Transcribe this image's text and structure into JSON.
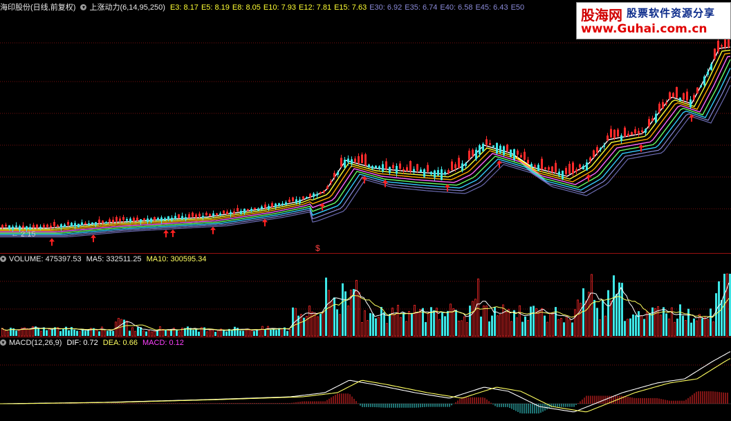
{
  "colors": {
    "background": "#000000",
    "grid_line": "#7a1010",
    "up_candle": "#ff2a2a",
    "down_candle": "#3ee6e6",
    "ma_bands": [
      "#ffffff",
      "#ffff33",
      "#ffaa00",
      "#ff66ff",
      "#66ff66",
      "#33ccff",
      "#8a8ad8",
      "#6a6ab0"
    ],
    "buy_arrow": "#ff2020",
    "dif_line": "#ffffff",
    "dea_line": "#ffff60",
    "macd_label": "#ff40ff"
  },
  "price_panel": {
    "title": "海印股份(日线,前复权)",
    "indicator_name": "上涨动力(6,14,95,250)",
    "ma_values": [
      {
        "label": "E3: 8.17",
        "color": "#ffff33"
      },
      {
        "label": "E5: 8.19",
        "color": "#ffff33"
      },
      {
        "label": "E8: 8.05",
        "color": "#ffff33"
      },
      {
        "label": "E10: 7.93",
        "color": "#ffff33"
      },
      {
        "label": "E12: 7.81",
        "color": "#ffff33"
      },
      {
        "label": "E15: 7.63",
        "color": "#ffff33"
      },
      {
        "label": "E30: 6.92",
        "color": "#8a8ad8"
      },
      {
        "label": "E35: 6.74",
        "color": "#8a8ad8"
      },
      {
        "label": "E40: 6.58",
        "color": "#8a8ad8"
      },
      {
        "label": "E45: 6.43",
        "color": "#8a8ad8"
      },
      {
        "label": "E50",
        "color": "#8a8ad8"
      }
    ],
    "lowest_label": "← 2.15",
    "event_marker": "$",
    "buy_signal_icon": "up-arrow-icon"
  },
  "volume_panel": {
    "title": "VOLUME: 475397.53",
    "ma5": "MA5: 332511.25",
    "ma10": "MA10: 300595.34"
  },
  "macd_panel": {
    "title": "MACD(12,26,9)",
    "dif": "DIF: 0.72",
    "dea": "DEA: 0.66",
    "macd": "MACD: 0.12"
  },
  "watermark": {
    "brand": "股海网",
    "tagline": "股票软件资源分享",
    "url": "www.Guhai.com.cn"
  }
}
